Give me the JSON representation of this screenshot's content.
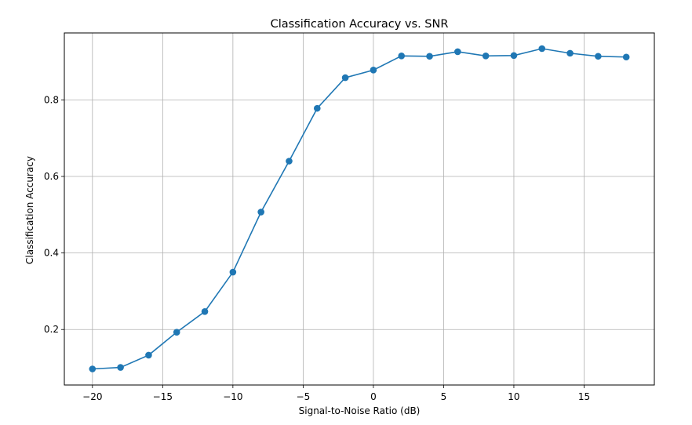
{
  "chart_data": {
    "type": "line",
    "title": "Classification Accuracy vs. SNR",
    "xlabel": "Signal-to-Noise Ratio (dB)",
    "ylabel": "Classification Accuracy",
    "xlim": [
      -22,
      20
    ],
    "ylim": [
      0.055,
      0.975
    ],
    "xticks": [
      -20,
      -15,
      -10,
      -5,
      0,
      5,
      10,
      15
    ],
    "xtick_labels": [
      "−20",
      "−15",
      "−10",
      "−5",
      "0",
      "5",
      "10",
      "15"
    ],
    "yticks": [
      0.2,
      0.4,
      0.6,
      0.8
    ],
    "ytick_labels": [
      "0.2",
      "0.4",
      "0.6",
      "0.8"
    ],
    "grid": true,
    "marker": "circle",
    "series": [
      {
        "color": "#1f77b4",
        "x": [
          -20,
          -18,
          -16,
          -14,
          -12,
          -10,
          -8,
          -6,
          -4,
          -2,
          0,
          2,
          4,
          6,
          8,
          10,
          12,
          14,
          16,
          18
        ],
        "y": [
          0.097,
          0.101,
          0.133,
          0.193,
          0.247,
          0.35,
          0.507,
          0.64,
          0.778,
          0.858,
          0.878,
          0.915,
          0.914,
          0.926,
          0.915,
          0.916,
          0.934,
          0.922,
          0.914,
          0.912
        ]
      }
    ]
  }
}
